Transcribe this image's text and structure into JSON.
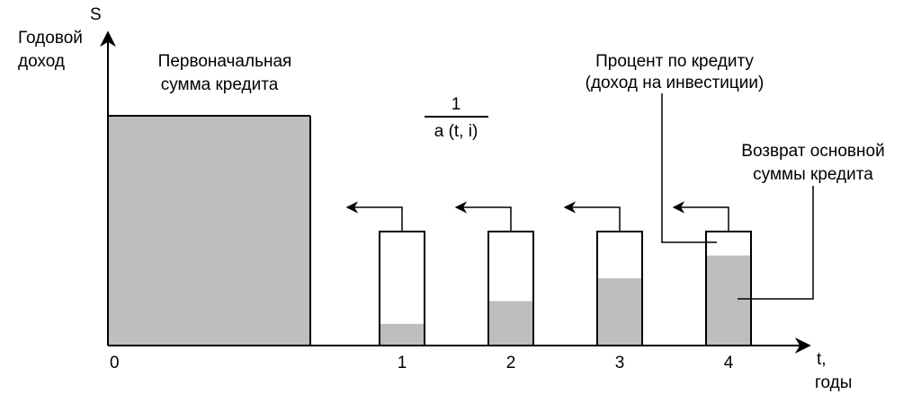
{
  "axes": {
    "y_symbol": "S",
    "y_label_line1": "Годовой",
    "y_label_line2": "доход",
    "x_symbol": "t,",
    "x_unit": "годы",
    "origin_label": "0"
  },
  "labels": {
    "initial_amount_line1": "Первоначальная",
    "initial_amount_line2": "сумма кредита",
    "fraction_numerator": "1",
    "fraction_denominator": "a (t, i)",
    "interest_line1": "Процент по кредиту",
    "interest_line2": "(доход на инвестиции)",
    "principal_line1": "Возврат основной",
    "principal_line2": "суммы кредита"
  },
  "payments": [
    {
      "year": "1",
      "principal_share": 0.19
    },
    {
      "year": "2",
      "principal_share": 0.39
    },
    {
      "year": "3",
      "principal_share": 0.59
    },
    {
      "year": "4",
      "principal_share": 0.79
    }
  ],
  "colors": {
    "fill": "#bebebe",
    "stroke": "#000000",
    "background": "#ffffff"
  }
}
